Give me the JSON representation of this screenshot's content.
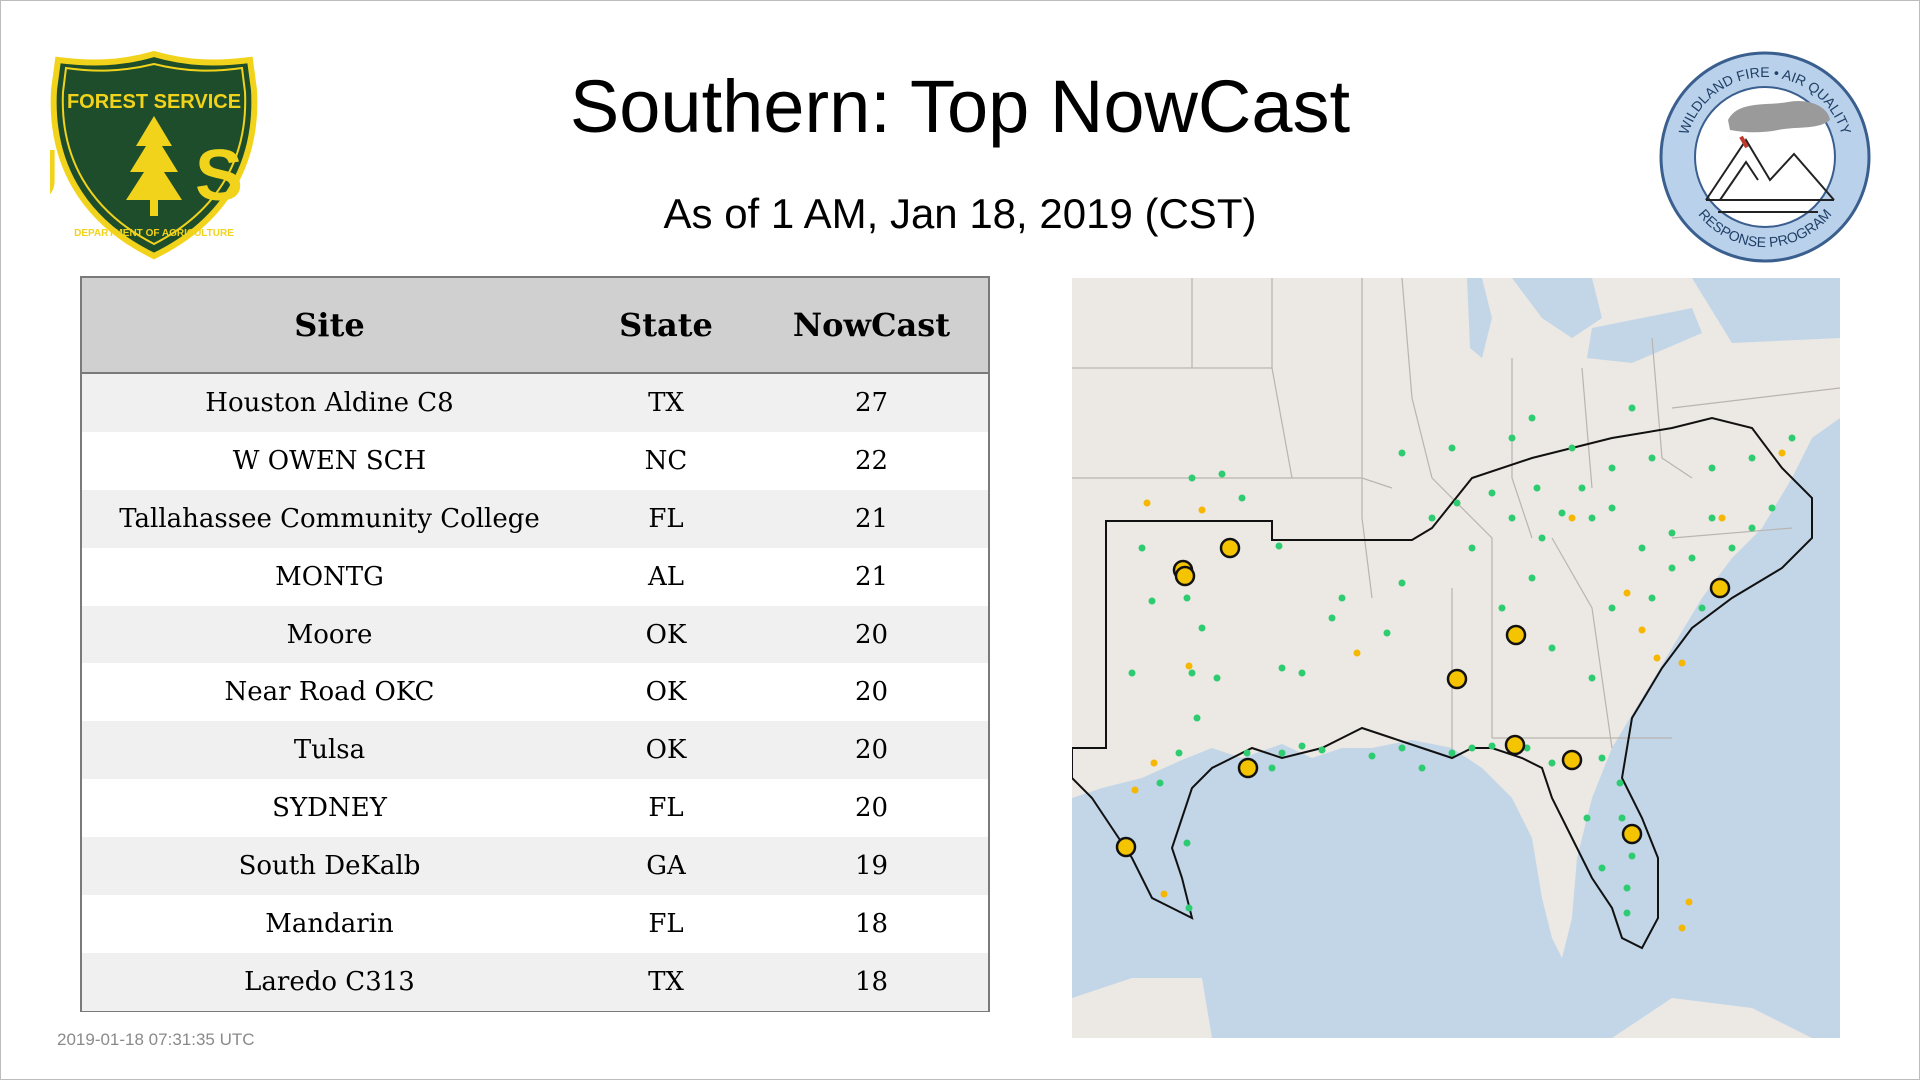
{
  "header": {
    "title": "Southern: Top NowCast",
    "subtitle": "As of  1 AM, Jan 18, 2019 (CST)"
  },
  "logos": {
    "forest_service": {
      "top_text": "FOREST SERVICE",
      "letters": "U S",
      "bottom_text": "DEPARTMENT OF AGRICULTURE",
      "colors": {
        "shield": "#1d4d2b",
        "border": "#f2d31b"
      }
    },
    "wildland_fire": {
      "top_text": "WILDLAND FIRE • AIR QUALITY",
      "bottom_text": "RESPONSE PROGRAM",
      "colors": {
        "ring": "#b9d1ea",
        "border": "#3a5f8f"
      }
    }
  },
  "table": {
    "headers": {
      "site": "Site",
      "state": "State",
      "nowcast": "NowCast"
    },
    "rows": [
      {
        "site": "Houston Aldine C8",
        "state": "TX",
        "nowcast": "27"
      },
      {
        "site": "W OWEN SCH",
        "state": "NC",
        "nowcast": "22"
      },
      {
        "site": "Tallahassee Community College",
        "state": "FL",
        "nowcast": "21"
      },
      {
        "site": "MONTG",
        "state": "AL",
        "nowcast": "21"
      },
      {
        "site": "Moore",
        "state": "OK",
        "nowcast": "20"
      },
      {
        "site": "Near Road OKC",
        "state": "OK",
        "nowcast": "20"
      },
      {
        "site": "Tulsa",
        "state": "OK",
        "nowcast": "20"
      },
      {
        "site": "SYDNEY",
        "state": "FL",
        "nowcast": "20"
      },
      {
        "site": "South DeKalb",
        "state": "GA",
        "nowcast": "19"
      },
      {
        "site": "Mandarin",
        "state": "FL",
        "nowcast": "18"
      },
      {
        "site": "Laredo C313",
        "state": "TX",
        "nowcast": "18"
      }
    ]
  },
  "timestamp": "2019-01-18 07:31:35 UTC",
  "map": {
    "colors": {
      "land": "#ece8e3",
      "water": "#c2d6e8",
      "good": "#2ecc71",
      "moderate": "#f5b700",
      "top_site": "#f5c400"
    }
  }
}
